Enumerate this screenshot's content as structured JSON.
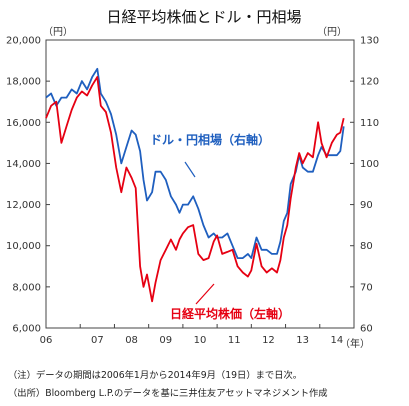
{
  "chart_data": {
    "type": "line",
    "title": "日経平均株価とドル・円相場",
    "left_axis": {
      "unit": "（円）",
      "ylim": [
        6000,
        20000
      ],
      "ticks": [
        "6,000",
        "8,000",
        "10,000",
        "12,000",
        "14,000",
        "16,000",
        "18,000",
        "20,000"
      ]
    },
    "right_axis": {
      "unit": "（円）",
      "ylim": [
        60,
        130
      ],
      "ticks": [
        "60",
        "70",
        "80",
        "90",
        "100",
        "110",
        "120",
        "130"
      ]
    },
    "x_axis": {
      "unit": "（年）",
      "range": [
        2006.0,
        2015.0
      ],
      "ticks": [
        "06",
        "07",
        "08",
        "09",
        "10",
        "11",
        "12",
        "13",
        "14"
      ]
    },
    "grid": false,
    "series": [
      {
        "name": "ドル・円相場（右軸）",
        "axis": "right",
        "color": "#1f5fbf",
        "x": [
          2006.0,
          2006.15,
          2006.3,
          2006.45,
          2006.6,
          2006.75,
          2006.9,
          2007.05,
          2007.2,
          2007.35,
          2007.5,
          2007.6,
          2007.75,
          2007.9,
          2008.05,
          2008.2,
          2008.35,
          2008.5,
          2008.62,
          2008.75,
          2008.85,
          2008.95,
          2009.1,
          2009.2,
          2009.35,
          2009.5,
          2009.65,
          2009.8,
          2009.9,
          2010.0,
          2010.15,
          2010.3,
          2010.45,
          2010.6,
          2010.75,
          2010.9,
          2011.0,
          2011.15,
          2011.3,
          2011.45,
          2011.6,
          2011.75,
          2011.9,
          2012.0,
          2012.15,
          2012.3,
          2012.45,
          2012.6,
          2012.75,
          2012.85,
          2012.95,
          2013.05,
          2013.15,
          2013.3,
          2013.4,
          2013.5,
          2013.65,
          2013.8,
          2013.95,
          2014.05,
          2014.2,
          2014.35,
          2014.5,
          2014.6,
          2014.7
        ],
        "values": [
          116,
          117,
          114,
          116,
          116,
          118,
          117,
          120,
          118,
          121,
          123,
          117,
          115,
          112,
          107,
          100,
          104,
          108,
          107,
          103,
          96,
          91,
          93,
          98,
          98,
          96,
          92,
          90,
          88,
          90,
          90,
          92,
          89,
          85,
          82,
          83,
          82,
          82,
          83,
          80,
          77,
          77,
          78,
          77,
          82,
          79,
          79,
          78,
          78,
          81,
          86,
          88,
          95,
          98,
          102,
          99,
          98,
          98,
          102,
          104,
          102,
          102,
          102,
          103,
          109
        ]
      },
      {
        "name": "日経平均株価（左軸）",
        "axis": "left",
        "color": "#e60012",
        "x": [
          2006.0,
          2006.15,
          2006.3,
          2006.45,
          2006.6,
          2006.75,
          2006.9,
          2007.05,
          2007.2,
          2007.35,
          2007.5,
          2007.6,
          2007.75,
          2007.9,
          2008.05,
          2008.2,
          2008.35,
          2008.5,
          2008.62,
          2008.75,
          2008.85,
          2008.95,
          2009.1,
          2009.2,
          2009.35,
          2009.5,
          2009.65,
          2009.8,
          2009.9,
          2010.0,
          2010.15,
          2010.3,
          2010.45,
          2010.6,
          2010.75,
          2010.9,
          2011.0,
          2011.15,
          2011.3,
          2011.45,
          2011.6,
          2011.75,
          2011.9,
          2012.0,
          2012.15,
          2012.3,
          2012.45,
          2012.6,
          2012.75,
          2012.85,
          2012.95,
          2013.05,
          2013.15,
          2013.3,
          2013.4,
          2013.5,
          2013.65,
          2013.8,
          2013.95,
          2014.05,
          2014.2,
          2014.35,
          2014.5,
          2014.6,
          2014.7
        ],
        "values": [
          16200,
          16800,
          17000,
          15000,
          15800,
          16600,
          17200,
          17500,
          17300,
          17800,
          18200,
          16800,
          16500,
          15500,
          13800,
          12600,
          13800,
          13300,
          12800,
          9000,
          8000,
          8600,
          7300,
          8200,
          9300,
          9800,
          10300,
          9800,
          10300,
          10600,
          10900,
          11000,
          9600,
          9300,
          9400,
          10200,
          10500,
          9600,
          9700,
          9800,
          9000,
          8700,
          8500,
          8800,
          10100,
          9000,
          8700,
          8900,
          8700,
          9300,
          10400,
          11000,
          12300,
          13800,
          14500,
          14000,
          14500,
          14300,
          16000,
          15000,
          14300,
          15000,
          15400,
          15500,
          16200
        ]
      }
    ],
    "annotations": [
      {
        "id": "usdjpy",
        "text": "ドル・円相場（右軸）",
        "color": "#1f5fbf"
      },
      {
        "id": "nikkei",
        "text": "日経平均株価（左軸）",
        "color": "#e60012"
      }
    ],
    "notes": [
      "（注）データの期間は2006年1月から2014年9月（19日）まで日次。",
      "（出所）Bloomberg L.P.のデータを基に三井住友アセットマネジメント作成"
    ]
  }
}
